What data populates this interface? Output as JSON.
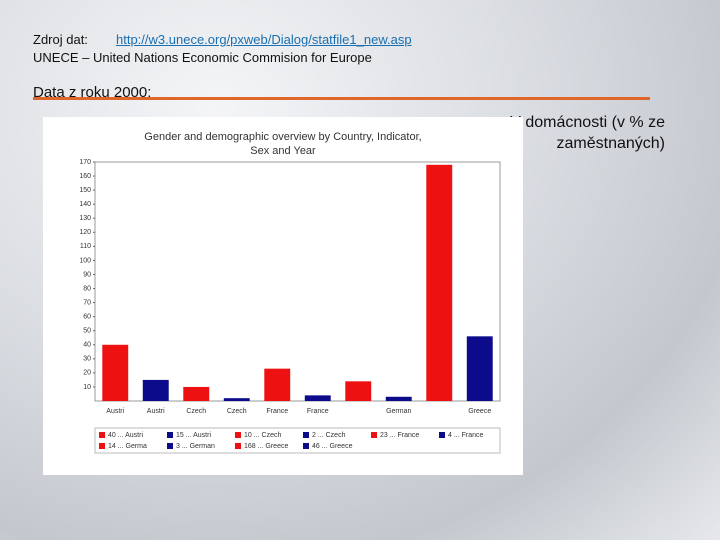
{
  "source_label": "Zdroj dat:",
  "source_url": "http://w3.unece.org/pxweb/Dialog/statfile1_new.asp",
  "source_name": "UNECE – United Nations Economic Commision for Europe",
  "section_title": "Data z roku 2000:",
  "caption": "V domácnosti (v % ze zaměstnaných)",
  "chart_data": {
    "type": "bar",
    "title": "Gender and demographic overview by Country, Indicator, Sex and Year",
    "categories": [
      "Austri",
      "Austri",
      "Czech",
      "Czech",
      "France",
      "France",
      null,
      "German",
      null,
      "Greece"
    ],
    "values": [
      40,
      15,
      10,
      2,
      23,
      4,
      14,
      3,
      168,
      46
    ],
    "colors": [
      "#ee1111",
      "#0b0b8c",
      "#ee1111",
      "#0b0b8c",
      "#ee1111",
      "#0b0b8c",
      "#ee1111",
      "#0b0b8c",
      "#ee1111",
      "#0b0b8c"
    ],
    "legend": [
      "40 ... Austri",
      "15 ... Austri",
      "10 ... Czech",
      "2 ... Czech",
      "23 ... France",
      "4 ... France",
      "14 ... Germa",
      "3 ... German",
      "168 ... Greece",
      "46 ... Greece"
    ],
    "ylim": [
      0,
      170
    ],
    "yticks": [
      10,
      20,
      30,
      40,
      50,
      60,
      70,
      80,
      90,
      100,
      110,
      120,
      130,
      140,
      150,
      160,
      170
    ]
  }
}
